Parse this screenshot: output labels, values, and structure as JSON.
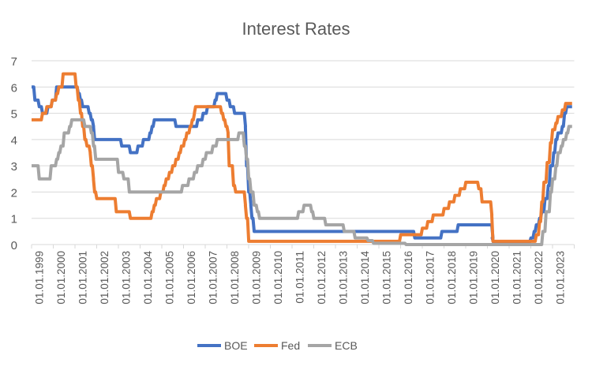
{
  "chart_data": {
    "type": "line",
    "title": "Interest Rates",
    "xlabel": "",
    "ylabel": "",
    "xlim": [
      1999,
      2024
    ],
    "ylim": [
      0,
      7
    ],
    "yticks": [
      0,
      1,
      2,
      3,
      4,
      5,
      6,
      7
    ],
    "xtick_labels": [
      "01.01.1999",
      "01.01.2000",
      "01.01.2001",
      "01.01.2002",
      "01.01.2003",
      "01.01.2004",
      "01.01.2005",
      "01.01.2006",
      "01.01.2007",
      "01.01.2008",
      "01.01.2009",
      "01.01.2010",
      "01.01.2011",
      "01.01.2012",
      "01.01.2013",
      "01.01.2014",
      "01.01.2015",
      "01.01.2016",
      "01.01.2017",
      "01.01.2018",
      "01.01.2019",
      "01.01.2020",
      "01.01.2021",
      "01.01.2022",
      "01.01.2023"
    ],
    "grid": true,
    "legend": "bottom",
    "x_end": 2023.9,
    "series": [
      {
        "name": "BOE",
        "color": "#4472C4",
        "steps": [
          [
            1999,
            6
          ],
          [
            1999.1,
            5.5
          ],
          [
            1999.3,
            5.25
          ],
          [
            1999.45,
            5
          ],
          [
            1999.7,
            5.25
          ],
          [
            1999.9,
            5.5
          ],
          [
            2000.1,
            6
          ],
          [
            2001.1,
            5.75
          ],
          [
            2001.2,
            5.5
          ],
          [
            2001.3,
            5.25
          ],
          [
            2001.6,
            5
          ],
          [
            2001.7,
            4.75
          ],
          [
            2001.8,
            4.5
          ],
          [
            2001.85,
            4
          ],
          [
            2003.1,
            3.75
          ],
          [
            2003.5,
            3.5
          ],
          [
            2003.85,
            3.75
          ],
          [
            2004.1,
            4
          ],
          [
            2004.4,
            4.25
          ],
          [
            2004.5,
            4.5
          ],
          [
            2004.6,
            4.75
          ],
          [
            2005.6,
            4.5
          ],
          [
            2006.6,
            4.75
          ],
          [
            2006.85,
            5
          ],
          [
            2007.05,
            5.25
          ],
          [
            2007.4,
            5.5
          ],
          [
            2007.5,
            5.75
          ],
          [
            2007.95,
            5.5
          ],
          [
            2008.1,
            5.25
          ],
          [
            2008.3,
            5
          ],
          [
            2008.8,
            4.5
          ],
          [
            2008.85,
            3
          ],
          [
            2008.95,
            2
          ],
          [
            2009.05,
            1.5
          ],
          [
            2009.1,
            1
          ],
          [
            2009.2,
            0.5
          ],
          [
            2016.6,
            0.25
          ],
          [
            2017.85,
            0.5
          ],
          [
            2018.6,
            0.75
          ],
          [
            2020.2,
            0.25
          ],
          [
            2020.22,
            0.1
          ],
          [
            2021.95,
            0.25
          ],
          [
            2022.1,
            0.5
          ],
          [
            2022.2,
            0.75
          ],
          [
            2022.35,
            1
          ],
          [
            2022.45,
            1.25
          ],
          [
            2022.6,
            1.75
          ],
          [
            2022.75,
            2.25
          ],
          [
            2022.85,
            3
          ],
          [
            2023.0,
            3.5
          ],
          [
            2023.1,
            4
          ],
          [
            2023.2,
            4.25
          ],
          [
            2023.4,
            4.5
          ],
          [
            2023.5,
            5
          ],
          [
            2023.6,
            5.25
          ]
        ]
      },
      {
        "name": "Fed",
        "color": "#ED7D31",
        "steps": [
          [
            1999,
            4.75
          ],
          [
            1999.45,
            5
          ],
          [
            1999.65,
            5.25
          ],
          [
            1999.9,
            5.5
          ],
          [
            2000.1,
            5.75
          ],
          [
            2000.2,
            6
          ],
          [
            2000.4,
            6.5
          ],
          [
            2001.0,
            6
          ],
          [
            2001.1,
            5.5
          ],
          [
            2001.2,
            5
          ],
          [
            2001.3,
            4.5
          ],
          [
            2001.4,
            4
          ],
          [
            2001.5,
            3.75
          ],
          [
            2001.65,
            3.5
          ],
          [
            2001.7,
            3
          ],
          [
            2001.8,
            2.5
          ],
          [
            2001.85,
            2
          ],
          [
            2001.95,
            1.75
          ],
          [
            2002.85,
            1.25
          ],
          [
            2003.5,
            1
          ],
          [
            2004.5,
            1.25
          ],
          [
            2004.6,
            1.5
          ],
          [
            2004.7,
            1.75
          ],
          [
            2004.9,
            2
          ],
          [
            2005.05,
            2.25
          ],
          [
            2005.15,
            2.5
          ],
          [
            2005.3,
            2.75
          ],
          [
            2005.45,
            3
          ],
          [
            2005.6,
            3.25
          ],
          [
            2005.75,
            3.5
          ],
          [
            2005.85,
            3.75
          ],
          [
            2006.0,
            4
          ],
          [
            2006.1,
            4.25
          ],
          [
            2006.25,
            4.5
          ],
          [
            2006.35,
            4.75
          ],
          [
            2006.45,
            5
          ],
          [
            2006.5,
            5.25
          ],
          [
            2007.7,
            5
          ],
          [
            2007.8,
            4.75
          ],
          [
            2007.9,
            4.5
          ],
          [
            2008.0,
            4.25
          ],
          [
            2008.05,
            3
          ],
          [
            2008.25,
            2.25
          ],
          [
            2008.35,
            2
          ],
          [
            2008.8,
            1.5
          ],
          [
            2008.85,
            1
          ],
          [
            2008.95,
            0.125
          ],
          [
            2015.95,
            0.375
          ],
          [
            2016.95,
            0.625
          ],
          [
            2017.2,
            0.875
          ],
          [
            2017.45,
            1.125
          ],
          [
            2017.95,
            1.375
          ],
          [
            2018.2,
            1.625
          ],
          [
            2018.45,
            1.875
          ],
          [
            2018.7,
            2.125
          ],
          [
            2018.95,
            2.375
          ],
          [
            2019.55,
            2.125
          ],
          [
            2019.7,
            1.625
          ],
          [
            2020.15,
            1.125
          ],
          [
            2020.2,
            0.125
          ],
          [
            2022.2,
            0.375
          ],
          [
            2022.35,
            0.875
          ],
          [
            2022.45,
            1.625
          ],
          [
            2022.55,
            2.375
          ],
          [
            2022.7,
            3.125
          ],
          [
            2022.85,
            3.875
          ],
          [
            2022.95,
            4.375
          ],
          [
            2023.1,
            4.625
          ],
          [
            2023.2,
            4.875
          ],
          [
            2023.4,
            5.125
          ],
          [
            2023.55,
            5.375
          ]
        ]
      },
      {
        "name": "ECB",
        "color": "#A5A5A5",
        "steps": [
          [
            1999,
            3
          ],
          [
            1999.3,
            2.5
          ],
          [
            1999.85,
            3
          ],
          [
            2000.1,
            3.25
          ],
          [
            2000.2,
            3.5
          ],
          [
            2000.3,
            3.75
          ],
          [
            2000.45,
            4.25
          ],
          [
            2000.7,
            4.5
          ],
          [
            2000.8,
            4.75
          ],
          [
            2001.4,
            4.5
          ],
          [
            2001.7,
            4.25
          ],
          [
            2001.8,
            3.75
          ],
          [
            2001.9,
            3.25
          ],
          [
            2002.95,
            2.75
          ],
          [
            2003.2,
            2.5
          ],
          [
            2003.45,
            2
          ],
          [
            2005.9,
            2.25
          ],
          [
            2006.2,
            2.5
          ],
          [
            2006.45,
            2.75
          ],
          [
            2006.6,
            3
          ],
          [
            2006.85,
            3.25
          ],
          [
            2007.0,
            3.5
          ],
          [
            2007.3,
            3.75
          ],
          [
            2007.5,
            4
          ],
          [
            2008.5,
            4.25
          ],
          [
            2008.75,
            3.75
          ],
          [
            2008.85,
            3.25
          ],
          [
            2008.95,
            2.5
          ],
          [
            2009.05,
            2
          ],
          [
            2009.2,
            1.5
          ],
          [
            2009.35,
            1.25
          ],
          [
            2009.45,
            1
          ],
          [
            2011.25,
            1.25
          ],
          [
            2011.5,
            1.5
          ],
          [
            2011.85,
            1.25
          ],
          [
            2011.95,
            1
          ],
          [
            2012.5,
            0.75
          ],
          [
            2013.35,
            0.5
          ],
          [
            2013.85,
            0.25
          ],
          [
            2014.45,
            0.15
          ],
          [
            2014.7,
            0.05
          ],
          [
            2016.2,
            0
          ],
          [
            2022.5,
            0.5
          ],
          [
            2022.65,
            1.25
          ],
          [
            2022.85,
            2
          ],
          [
            2022.95,
            2.5
          ],
          [
            2023.1,
            3
          ],
          [
            2023.2,
            3.5
          ],
          [
            2023.35,
            3.75
          ],
          [
            2023.45,
            4
          ],
          [
            2023.6,
            4.25
          ],
          [
            2023.7,
            4.5
          ]
        ]
      }
    ]
  }
}
